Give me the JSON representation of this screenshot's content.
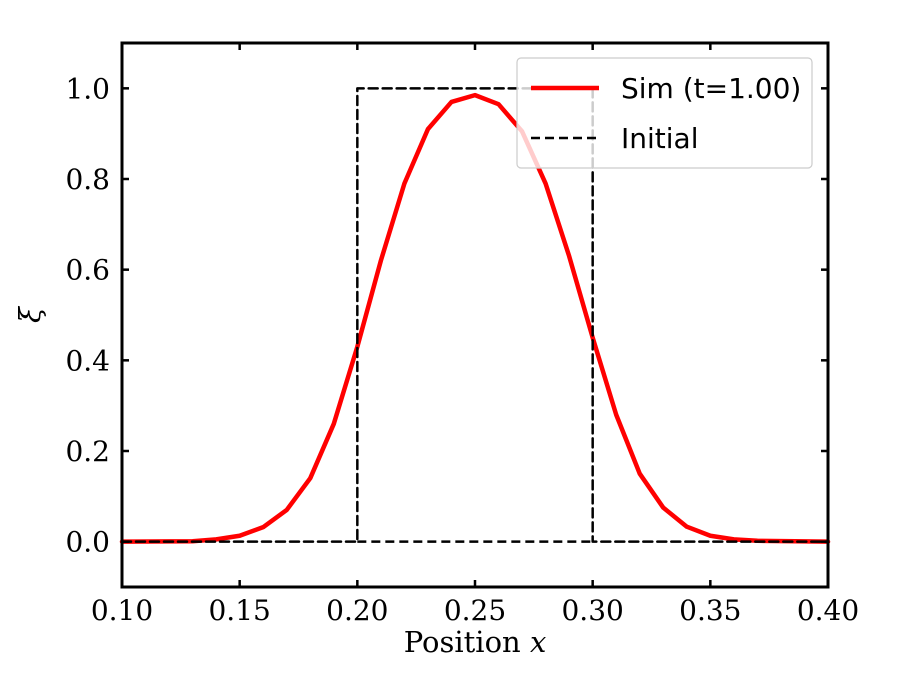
{
  "chart_data": {
    "type": "line",
    "xlabel": "Position x",
    "xlabel_prefix": "Position",
    "xlabel_var": "x",
    "ylabel": "ξ",
    "xlim": [
      0.1,
      0.4
    ],
    "ylim": [
      -0.1,
      1.1
    ],
    "xticks": [
      "0.10",
      "0.15",
      "0.20",
      "0.25",
      "0.30",
      "0.35",
      "0.40"
    ],
    "yticks": [
      "0.0",
      "0.2",
      "0.4",
      "0.6",
      "0.8",
      "1.0"
    ],
    "legend_position": "top-right",
    "series": [
      {
        "name": "Sim (t=1.00)",
        "style": "solid",
        "color": "#ff0000",
        "x": [
          0.1,
          0.13,
          0.14,
          0.15,
          0.16,
          0.17,
          0.18,
          0.19,
          0.2,
          0.21,
          0.22,
          0.23,
          0.24,
          0.25,
          0.26,
          0.27,
          0.28,
          0.29,
          0.3,
          0.31,
          0.32,
          0.33,
          0.34,
          0.35,
          0.36,
          0.37,
          0.4
        ],
        "y": [
          0.0,
          0.001,
          0.005,
          0.013,
          0.032,
          0.07,
          0.14,
          0.26,
          0.43,
          0.62,
          0.79,
          0.91,
          0.97,
          0.985,
          0.965,
          0.905,
          0.79,
          0.63,
          0.45,
          0.28,
          0.15,
          0.075,
          0.033,
          0.013,
          0.005,
          0.002,
          0.0
        ]
      },
      {
        "name": "Initial",
        "style": "dashed",
        "color": "#000000",
        "x": [
          0.1,
          0.2,
          0.2,
          0.3,
          0.3,
          0.4
        ],
        "y": [
          0.0,
          0.0,
          1.0,
          1.0,
          0.0,
          0.0
        ]
      }
    ],
    "extra_dashed_segments": [
      {
        "x": [
          0.2,
          0.3
        ],
        "y": [
          0.0,
          0.0
        ]
      }
    ]
  }
}
